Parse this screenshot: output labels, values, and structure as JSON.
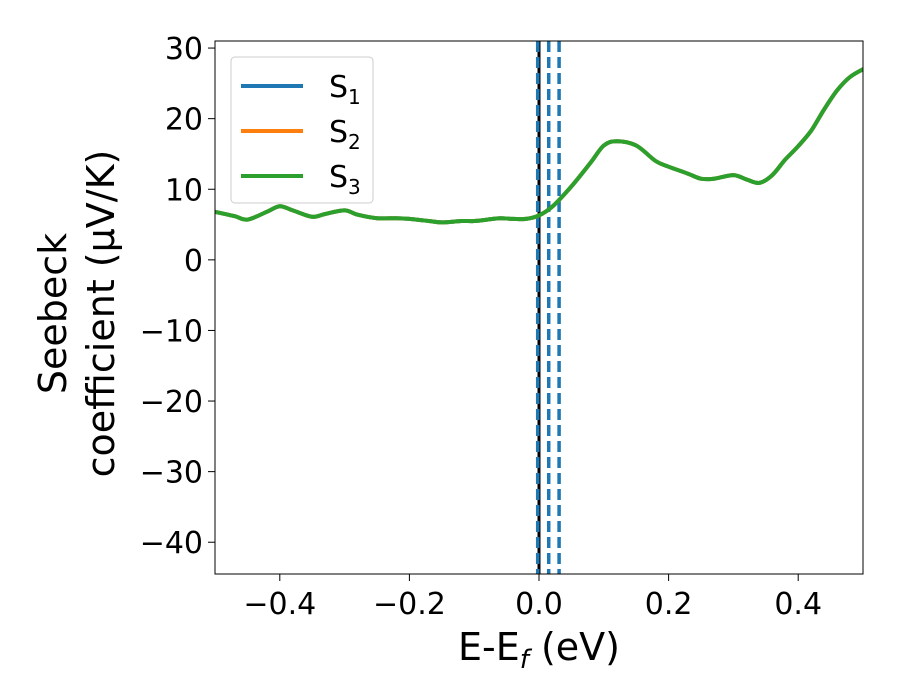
{
  "chart_data": {
    "type": "line",
    "title": "",
    "xlabel": "E-E",
    "xlabel_sub": "f",
    "xlabel_unit": " (eV)",
    "ylabel_line1": "Seebeck",
    "ylabel_line2": "coefficient  (μV/K)",
    "xlim": [
      -0.5,
      0.5
    ],
    "ylim": [
      -44.5,
      31
    ],
    "grid": false,
    "legend_position": "top-left",
    "x_ticks": [
      -0.4,
      -0.2,
      0.0,
      0.2,
      0.4
    ],
    "x_tick_labels": [
      "−0.4",
      "−0.2",
      "0.0",
      "0.2",
      "0.4"
    ],
    "y_ticks": [
      30,
      20,
      10,
      0,
      -10,
      -20,
      -30,
      -40
    ],
    "y_tick_labels": [
      "30",
      "20",
      "10",
      "0",
      "−10",
      "−20",
      "−30",
      "−40"
    ],
    "series": [
      {
        "name": "S",
        "name_sub": "1",
        "color": "#1f77b4",
        "x": [
          -0.5,
          -0.47,
          -0.45,
          -0.42,
          -0.4,
          -0.38,
          -0.35,
          -0.33,
          -0.3,
          -0.28,
          -0.25,
          -0.22,
          -0.2,
          -0.17,
          -0.15,
          -0.12,
          -0.1,
          -0.08,
          -0.06,
          -0.04,
          -0.02,
          0.0,
          0.02,
          0.05,
          0.08,
          0.1,
          0.12,
          0.15,
          0.18,
          0.2,
          0.23,
          0.25,
          0.27,
          0.3,
          0.32,
          0.34,
          0.36,
          0.38,
          0.4,
          0.42,
          0.44,
          0.46,
          0.48,
          0.5
        ],
        "y": [
          6.8,
          6.2,
          5.7,
          6.8,
          7.6,
          7.0,
          6.1,
          6.5,
          7.0,
          6.4,
          5.9,
          5.9,
          5.8,
          5.5,
          5.3,
          5.5,
          5.5,
          5.7,
          5.9,
          5.8,
          5.8,
          6.3,
          7.5,
          10.4,
          13.8,
          16.2,
          16.8,
          16.2,
          14.0,
          13.2,
          12.2,
          11.5,
          11.5,
          12.0,
          11.4,
          10.9,
          12.0,
          14.2,
          16.1,
          18.3,
          21.3,
          24.0,
          25.9,
          27.0
        ]
      },
      {
        "name": "S",
        "name_sub": "2",
        "color": "#ff7f0e",
        "x": [
          -0.5,
          -0.47,
          -0.45,
          -0.42,
          -0.4,
          -0.38,
          -0.35,
          -0.33,
          -0.3,
          -0.28,
          -0.25,
          -0.22,
          -0.2,
          -0.17,
          -0.15,
          -0.12,
          -0.1,
          -0.08,
          -0.06,
          -0.04,
          -0.02,
          0.0,
          0.02,
          0.05,
          0.08,
          0.1,
          0.12,
          0.15,
          0.18,
          0.2,
          0.23,
          0.25,
          0.27,
          0.3,
          0.32,
          0.34,
          0.36,
          0.38,
          0.4,
          0.42,
          0.44,
          0.46,
          0.48,
          0.5
        ],
        "y": [
          6.8,
          6.2,
          5.7,
          6.8,
          7.6,
          7.0,
          6.1,
          6.5,
          7.0,
          6.4,
          5.9,
          5.9,
          5.8,
          5.5,
          5.3,
          5.5,
          5.5,
          5.7,
          5.9,
          5.8,
          5.8,
          6.3,
          7.5,
          10.4,
          13.8,
          16.2,
          16.8,
          16.2,
          14.0,
          13.2,
          12.2,
          11.5,
          11.5,
          12.0,
          11.4,
          10.9,
          12.0,
          14.2,
          16.1,
          18.3,
          21.3,
          24.0,
          25.9,
          27.0
        ]
      },
      {
        "name": "S",
        "name_sub": "3",
        "color": "#2ca02c",
        "x": [
          -0.5,
          -0.47,
          -0.45,
          -0.42,
          -0.4,
          -0.38,
          -0.35,
          -0.33,
          -0.3,
          -0.28,
          -0.25,
          -0.22,
          -0.2,
          -0.17,
          -0.15,
          -0.12,
          -0.1,
          -0.08,
          -0.06,
          -0.04,
          -0.02,
          0.0,
          0.02,
          0.05,
          0.08,
          0.1,
          0.12,
          0.15,
          0.18,
          0.2,
          0.23,
          0.25,
          0.27,
          0.3,
          0.32,
          0.34,
          0.36,
          0.38,
          0.4,
          0.42,
          0.44,
          0.46,
          0.48,
          0.5
        ],
        "y": [
          6.8,
          6.2,
          5.7,
          6.8,
          7.6,
          7.0,
          6.1,
          6.5,
          7.0,
          6.4,
          5.9,
          5.9,
          5.8,
          5.5,
          5.3,
          5.5,
          5.5,
          5.7,
          5.9,
          5.8,
          5.8,
          6.3,
          7.5,
          10.4,
          13.8,
          16.2,
          16.8,
          16.2,
          14.0,
          13.2,
          12.2,
          11.5,
          11.5,
          12.0,
          11.4,
          10.9,
          12.0,
          14.2,
          16.1,
          18.3,
          21.3,
          24.0,
          25.9,
          27.0
        ]
      }
    ],
    "vertical_lines": [
      {
        "x": 0.0,
        "style": "solid",
        "color": "#000000"
      },
      {
        "x": -0.002,
        "style": "dashed",
        "color": "#1f77b4"
      },
      {
        "x": 0.015,
        "style": "dashed",
        "color": "#1f77b4"
      },
      {
        "x": 0.031,
        "style": "dashed",
        "color": "#1f77b4"
      }
    ]
  }
}
